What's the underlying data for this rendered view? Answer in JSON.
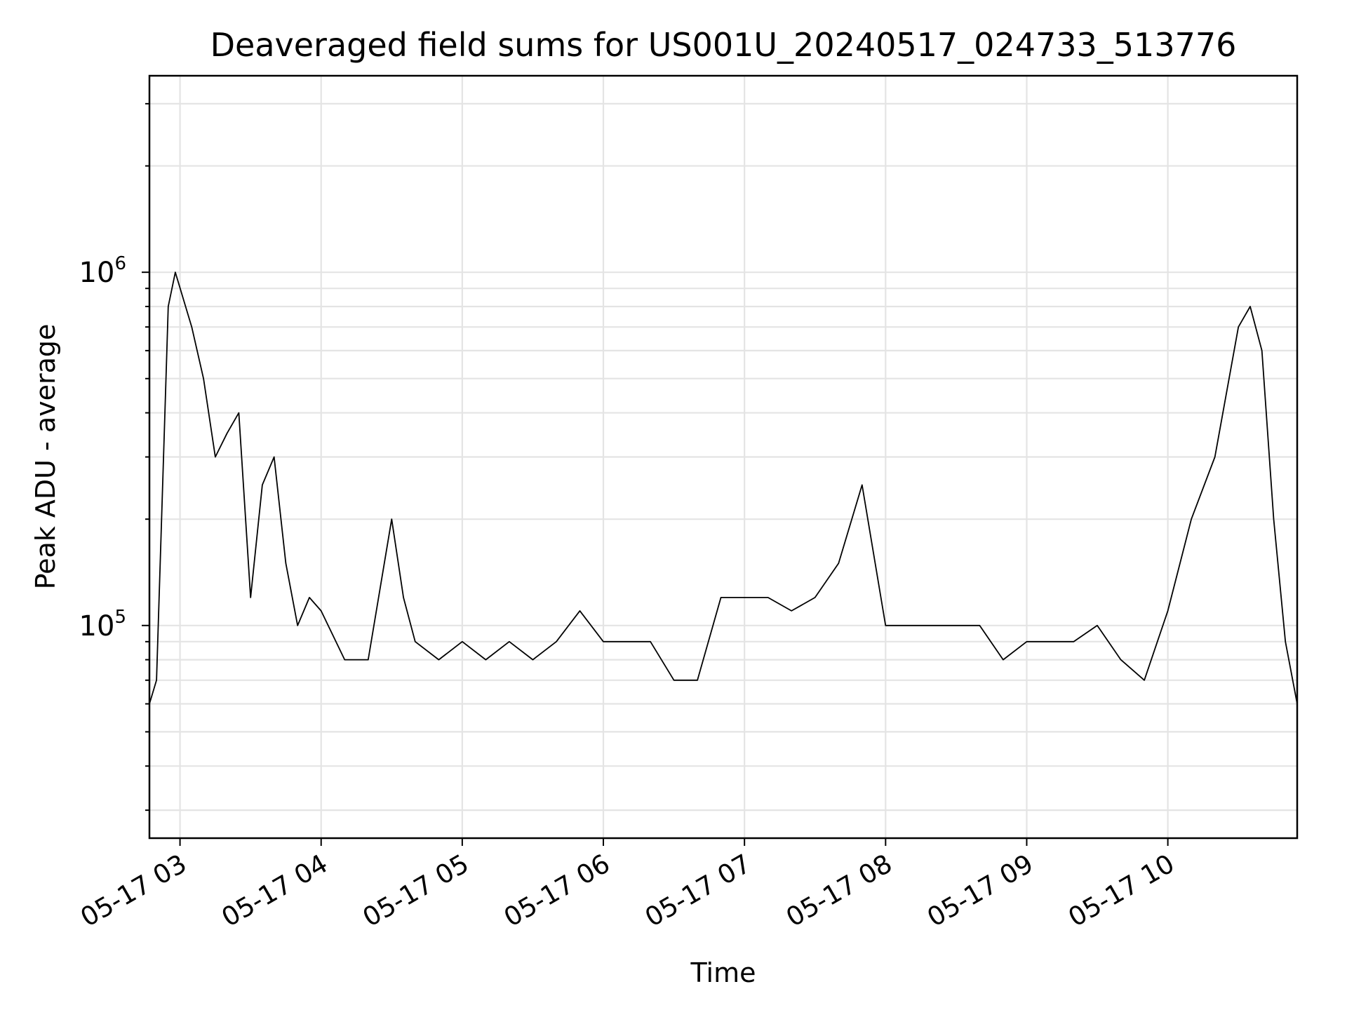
{
  "chart_data": {
    "type": "line",
    "title": "Deaveraged field sums for US001U_20240517_024733_513776",
    "xlabel": "Time",
    "ylabel": "Peak ADU - average",
    "y_scale": "log",
    "ylim": [
      25000,
      3600000
    ],
    "xlim": [
      "05-17 02:47",
      "05-17 10:55"
    ],
    "x_tick_labels": [
      "05-17 03",
      "05-17 04",
      "05-17 05",
      "05-17 06",
      "05-17 07",
      "05-17 08",
      "05-17 09",
      "05-17 10"
    ],
    "y_tick_labels": [
      {
        "base": "10",
        "exp": "5"
      },
      {
        "base": "10",
        "exp": "6"
      }
    ],
    "grid": true,
    "line_color": "#000000",
    "series": [
      {
        "x": [
          "05-17 02:47",
          "05-17 02:50",
          "05-17 02:53",
          "05-17 02:55",
          "05-17 02:58",
          "05-17 03:05",
          "05-17 03:10",
          "05-17 03:15",
          "05-17 03:20",
          "05-17 03:25",
          "05-17 03:30",
          "05-17 03:35",
          "05-17 03:40",
          "05-17 03:45",
          "05-17 03:50",
          "05-17 03:55",
          "05-17 04:00",
          "05-17 04:10",
          "05-17 04:20",
          "05-17 04:30",
          "05-17 04:35",
          "05-17 04:40",
          "05-17 04:50",
          "05-17 05:00",
          "05-17 05:10",
          "05-17 05:20",
          "05-17 05:30",
          "05-17 05:40",
          "05-17 05:50",
          "05-17 06:00",
          "05-17 06:10",
          "05-17 06:20",
          "05-17 06:30",
          "05-17 06:40",
          "05-17 06:50",
          "05-17 07:00",
          "05-17 07:10",
          "05-17 07:20",
          "05-17 07:30",
          "05-17 07:40",
          "05-17 07:50",
          "05-17 08:00",
          "05-17 08:10",
          "05-17 08:20",
          "05-17 08:30",
          "05-17 08:40",
          "05-17 08:50",
          "05-17 09:00",
          "05-17 09:10",
          "05-17 09:20",
          "05-17 09:30",
          "05-17 09:40",
          "05-17 09:50",
          "05-17 10:00",
          "05-17 10:10",
          "05-17 10:20",
          "05-17 10:30",
          "05-17 10:35",
          "05-17 10:40",
          "05-17 10:45",
          "05-17 10:50",
          "05-17 10:55"
        ],
        "y": [
          60000,
          70000,
          300000,
          800000,
          1000000,
          700000,
          500000,
          300000,
          350000,
          400000,
          120000,
          250000,
          300000,
          150000,
          100000,
          120000,
          110000,
          80000,
          80000,
          200000,
          120000,
          90000,
          80000,
          90000,
          80000,
          90000,
          80000,
          90000,
          110000,
          90000,
          90000,
          90000,
          70000,
          70000,
          120000,
          120000,
          120000,
          110000,
          120000,
          150000,
          250000,
          100000,
          100000,
          100000,
          100000,
          100000,
          80000,
          90000,
          90000,
          90000,
          100000,
          80000,
          70000,
          110000,
          200000,
          300000,
          700000,
          800000,
          600000,
          200000,
          90000,
          60000
        ]
      }
    ]
  }
}
